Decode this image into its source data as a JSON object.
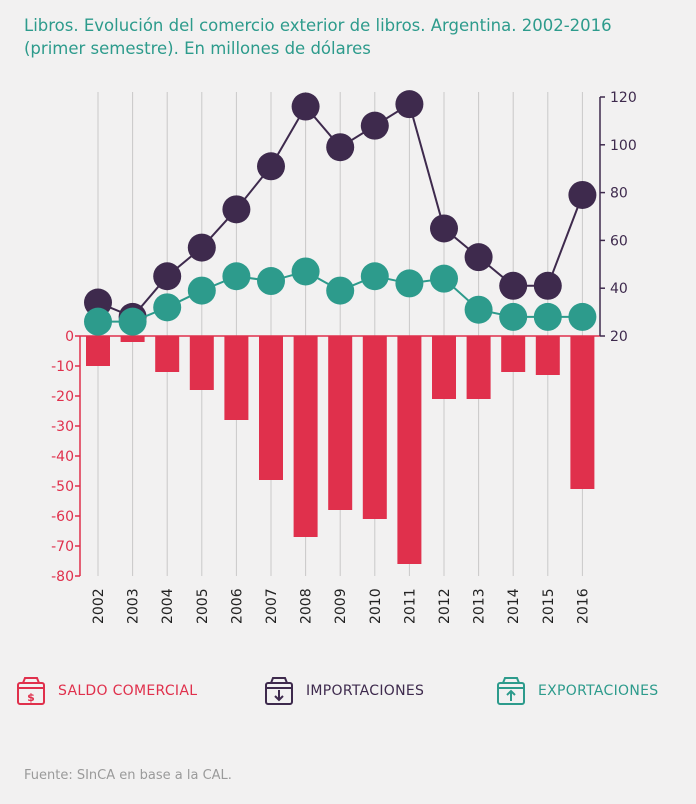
{
  "title": "Libros. Evolución del comercio exterior de libros. Argentina. 2002-2016 (primer semestre). En millones de dólares",
  "source": "Fuente: SInCA en base a la CAL.",
  "colors": {
    "saldo": "#e0304c",
    "importaciones": "#3e2a4d",
    "exportaciones": "#2d9b8c",
    "grid": "#c9c9c9",
    "title": "#2d9b8c"
  },
  "legend": [
    {
      "label": "SALDO COMERCIAL",
      "icon": "dollar-box-icon"
    },
    {
      "label": "IMPORTACIONES",
      "icon": "box-arrow-down-icon"
    },
    {
      "label": "EXPORTACIONES",
      "icon": "box-arrow-up-icon"
    }
  ],
  "chart_data": {
    "type": "bar+line",
    "categories": [
      "2002",
      "2003",
      "2004",
      "2005",
      "2006",
      "2007",
      "2008",
      "2009",
      "2010",
      "2011",
      "2012",
      "2013",
      "2014",
      "2015",
      "2016"
    ],
    "left_axis": {
      "ticks": [
        "0",
        "-10",
        "-20",
        "-30",
        "-40",
        "-50",
        "-60",
        "-70",
        "-80"
      ],
      "range": [
        -80,
        0
      ]
    },
    "right_axis": {
      "ticks": [
        "20",
        "40",
        "60",
        "80",
        "100",
        "120"
      ],
      "range": [
        20,
        120
      ]
    },
    "series": [
      {
        "name": "SALDO COMERCIAL",
        "type": "bar",
        "axis": "left",
        "values": [
          -10,
          -2,
          -12,
          -18,
          -28,
          -48,
          -67,
          -58,
          -61,
          -76,
          -21,
          -21,
          -12,
          -13,
          -51
        ]
      },
      {
        "name": "IMPORTACIONES",
        "type": "line",
        "axis": "right",
        "values": [
          34,
          28,
          45,
          57,
          73,
          91,
          116,
          99,
          108,
          117,
          65,
          53,
          41,
          41,
          79
        ]
      },
      {
        "name": "EXPORTACIONES",
        "type": "line",
        "axis": "right",
        "values": [
          26,
          26,
          32,
          39,
          45,
          43,
          47,
          39,
          45,
          42,
          44,
          31,
          28,
          28,
          28
        ]
      }
    ]
  }
}
